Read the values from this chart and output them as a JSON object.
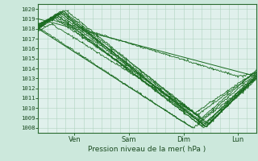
{
  "xlabel": "Pression niveau de la mer( hPa )",
  "ylim": [
    1007.5,
    1020.5
  ],
  "xlim": [
    0,
    96
  ],
  "yticks": [
    1008,
    1009,
    1010,
    1011,
    1012,
    1013,
    1014,
    1015,
    1016,
    1017,
    1018,
    1019,
    1020
  ],
  "xtick_positions": [
    16,
    40,
    64,
    88
  ],
  "xtick_labels": [
    "Ven",
    "Sam",
    "Dim",
    "Lun"
  ],
  "bg_color": "#e0f0ec",
  "grid_color": "#b0d4c0",
  "line_color": "#1a6b20",
  "fig_bg": "#cce8dc"
}
